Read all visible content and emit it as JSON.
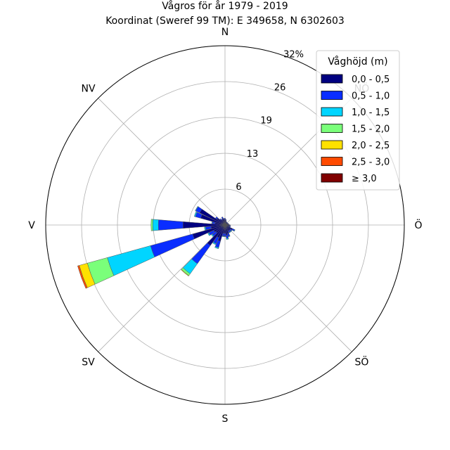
{
  "chart_data": {
    "type": "windrose",
    "title": "Vågros för år 1979 - 2019",
    "subtitle": "Koordinat (Sweref 99 TM): E 349658, N 6302603",
    "direction_labels": [
      "N",
      "NV",
      "V",
      "SV",
      "S",
      "SÖ",
      "Ö",
      "NÖ"
    ],
    "direction_angles_deg": [
      0,
      315,
      270,
      225,
      180,
      135,
      90,
      45
    ],
    "radial_ticks": [
      "6",
      "13",
      "19",
      "26",
      "32%"
    ],
    "radial_tick_values": [
      6.4,
      12.8,
      19.2,
      25.6,
      32.0
    ],
    "rmax": 32,
    "grid": true,
    "legend": {
      "title": "Våghöjd (m)",
      "placement": "top-right",
      "entries": [
        "0,0 - 0,5",
        "0,5 - 1,0",
        "1,0 - 1,5",
        "1,5 - 2,0",
        "2,0 - 2,5",
        "2,5 - 3,0",
        "≥ 3,0"
      ],
      "colors": [
        "#000080",
        "#0a2dff",
        "#00d5ff",
        "#7aff7a",
        "#ffe100",
        "#ff4a00",
        "#800000"
      ]
    },
    "sector_width_deg": 10,
    "sectors": [
      {
        "dir": 0,
        "values": [
          1.0,
          0.2,
          0,
          0,
          0,
          0,
          0
        ]
      },
      {
        "dir": 10,
        "values": [
          0.8,
          0.2,
          0,
          0,
          0,
          0,
          0
        ]
      },
      {
        "dir": 20,
        "values": [
          0.6,
          0.1,
          0,
          0,
          0,
          0,
          0
        ]
      },
      {
        "dir": 30,
        "values": [
          0.5,
          0.1,
          0,
          0,
          0,
          0,
          0
        ]
      },
      {
        "dir": 40,
        "values": [
          0.5,
          0.1,
          0,
          0,
          0,
          0,
          0
        ]
      },
      {
        "dir": 50,
        "values": [
          0.5,
          0.1,
          0,
          0,
          0,
          0,
          0
        ]
      },
      {
        "dir": 60,
        "values": [
          0.5,
          0.1,
          0,
          0,
          0,
          0,
          0
        ]
      },
      {
        "dir": 70,
        "values": [
          0.6,
          0.1,
          0,
          0,
          0,
          0,
          0
        ]
      },
      {
        "dir": 80,
        "values": [
          0.6,
          0.1,
          0,
          0,
          0,
          0,
          0
        ]
      },
      {
        "dir": 90,
        "values": [
          0.8,
          0.1,
          0,
          0,
          0,
          0,
          0
        ]
      },
      {
        "dir": 100,
        "values": [
          0.8,
          0.2,
          0,
          0,
          0,
          0,
          0
        ]
      },
      {
        "dir": 110,
        "values": [
          0.8,
          0.2,
          0,
          0,
          0,
          0,
          0
        ]
      },
      {
        "dir": 120,
        "values": [
          1.5,
          0.4,
          0.1,
          0,
          0,
          0,
          0
        ]
      },
      {
        "dir": 130,
        "values": [
          1.2,
          0.3,
          0.1,
          0,
          0,
          0,
          0
        ]
      },
      {
        "dir": 140,
        "values": [
          1.2,
          0.3,
          0.1,
          0,
          0,
          0,
          0
        ]
      },
      {
        "dir": 150,
        "values": [
          1.2,
          0.3,
          0.1,
          0,
          0,
          0,
          0
        ]
      },
      {
        "dir": 160,
        "values": [
          1.6,
          0.5,
          0.1,
          0,
          0,
          0,
          0
        ]
      },
      {
        "dir": 170,
        "values": [
          1.8,
          0.6,
          0.2,
          0,
          0,
          0,
          0
        ]
      },
      {
        "dir": 180,
        "values": [
          1.5,
          0.5,
          0.1,
          0,
          0,
          0,
          0
        ]
      },
      {
        "dir": 190,
        "values": [
          1.5,
          0.5,
          0.1,
          0,
          0,
          0,
          0
        ]
      },
      {
        "dir": 200,
        "values": [
          3.0,
          1.2,
          0.2,
          0,
          0,
          0,
          0
        ]
      },
      {
        "dir": 210,
        "values": [
          2.5,
          1.2,
          0.2,
          0,
          0,
          0,
          0
        ]
      },
      {
        "dir": 220,
        "values": [
          4.5,
          4.0,
          2.2,
          0.4,
          0.1,
          0,
          0
        ]
      },
      {
        "dir": 230,
        "values": [
          2.0,
          0.8,
          0.2,
          0,
          0,
          0,
          0
        ]
      },
      {
        "dir": 240,
        "values": [
          2.2,
          1.0,
          0.2,
          0,
          0,
          0,
          0
        ]
      },
      {
        "dir": 250,
        "values": [
          6.0,
          7.8,
          8.0,
          3.7,
          1.5,
          0.3,
          0
        ]
      },
      {
        "dir": 260,
        "values": [
          2.5,
          1.0,
          0.2,
          0,
          0,
          0,
          0
        ]
      },
      {
        "dir": 270,
        "values": [
          7.5,
          4.4,
          1.0,
          0.3,
          0,
          0,
          0
        ]
      },
      {
        "dir": 280,
        "values": [
          1.8,
          0.5,
          0.1,
          0,
          0,
          0,
          0
        ]
      },
      {
        "dir": 290,
        "values": [
          4.5,
          1.0,
          0.2,
          0,
          0,
          0,
          0
        ]
      },
      {
        "dir": 300,
        "values": [
          5.0,
          0.8,
          0.1,
          0,
          0,
          0,
          0
        ]
      },
      {
        "dir": 310,
        "values": [
          1.8,
          0.3,
          0,
          0,
          0,
          0,
          0
        ]
      },
      {
        "dir": 320,
        "values": [
          1.2,
          0.2,
          0,
          0,
          0,
          0,
          0
        ]
      },
      {
        "dir": 330,
        "values": [
          1.0,
          0.2,
          0,
          0,
          0,
          0,
          0
        ]
      },
      {
        "dir": 340,
        "values": [
          1.2,
          0.3,
          0,
          0,
          0,
          0,
          0
        ]
      },
      {
        "dir": 350,
        "values": [
          1.0,
          0.2,
          0,
          0,
          0,
          0,
          0
        ]
      }
    ]
  }
}
